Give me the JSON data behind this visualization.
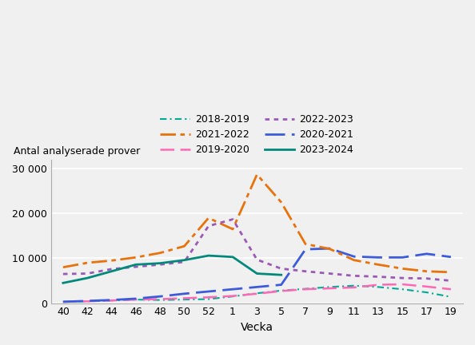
{
  "title": "",
  "ylabel": "Antal analyserade prover",
  "xlabel": "Vecka",
  "ylim": [
    0,
    32000
  ],
  "yticks": [
    0,
    10000,
    20000,
    30000
  ],
  "xtick_positions": [
    0,
    1,
    2,
    3,
    4,
    5,
    6,
    7,
    8,
    9,
    10,
    11,
    12,
    13,
    14,
    15,
    16
  ],
  "xtick_labels": [
    "40",
    "42",
    "44",
    "46",
    "48",
    "50",
    "52",
    "1",
    "3",
    "5",
    "7",
    "9",
    "11",
    "13",
    "15",
    "17",
    "19"
  ],
  "background_color": "#f0f0f0",
  "grid_color": "#ffffff",
  "series": [
    {
      "label": "2018-2019",
      "color": "#00a896",
      "lw": 1.5,
      "values": [
        300,
        400,
        600,
        800,
        700,
        800,
        900,
        1500,
        2200,
        2800,
        3200,
        3600,
        3900,
        3600,
        3100,
        2400,
        1400
      ]
    },
    {
      "label": "2019-2020",
      "color": "#ff69b4",
      "lw": 1.8,
      "values": [
        300,
        400,
        600,
        800,
        900,
        1100,
        1300,
        1600,
        2100,
        2700,
        3100,
        3300,
        3500,
        4100,
        4200,
        3700,
        3100
      ]
    },
    {
      "label": "2020-2021",
      "color": "#3b5bdb",
      "lw": 2.0,
      "values": [
        300,
        500,
        700,
        1000,
        1500,
        2100,
        2600,
        3100,
        3600,
        4100,
        12000,
        12200,
        10400,
        10200,
        10200,
        11000,
        10300
      ]
    },
    {
      "label": "2021-2022",
      "color": "#e8720c",
      "lw": 2.0,
      "values": [
        8000,
        9000,
        9500,
        10200,
        11200,
        12700,
        19000,
        16500,
        28700,
        22500,
        13200,
        12100,
        9600,
        8600,
        7700,
        7100,
        6900
      ]
    },
    {
      "label": "2022-2023",
      "color": "#9b59b6",
      "lw": 2.0,
      "values": [
        6500,
        6600,
        7600,
        8100,
        8600,
        9200,
        17200,
        18700,
        9700,
        7700,
        7100,
        6600,
        6100,
        5900,
        5600,
        5500,
        5000
      ]
    },
    {
      "label": "2023-2024",
      "color": "#00897b",
      "lw": 2.0,
      "values": [
        4500,
        5600,
        7100,
        8600,
        8900,
        9600,
        10600,
        10300,
        6600,
        6300,
        null,
        null,
        null,
        null,
        null,
        null,
        null
      ]
    }
  ]
}
